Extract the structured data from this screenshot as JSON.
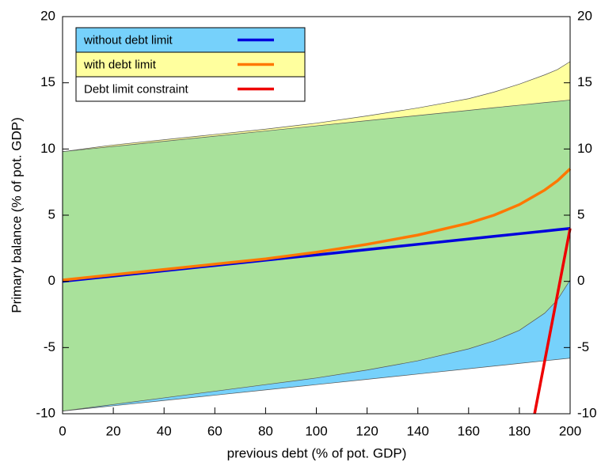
{
  "chart_data": {
    "type": "line",
    "x_label": "previous debt (% of pot. GDP)",
    "y_label": "Primary balance (% of pot. GDP)",
    "x": [
      0,
      20,
      40,
      60,
      80,
      100,
      120,
      140,
      160,
      170,
      180,
      190,
      195,
      200
    ],
    "xlim": [
      0,
      200
    ],
    "xticks": [
      0,
      20,
      40,
      60,
      80,
      100,
      120,
      140,
      160,
      180,
      200
    ],
    "ylim": [
      -10,
      20
    ],
    "yticks": [
      -10,
      -5,
      0,
      5,
      10,
      15,
      20
    ],
    "y2ticks": [
      -10,
      -5,
      0,
      5,
      10,
      15,
      20
    ],
    "overlap_color": "#a9e19b",
    "series": [
      {
        "name": "without debt limit",
        "color": "#0000dd",
        "fill_color": "#76d1fb",
        "values": [
          0,
          0.4,
          0.8,
          1.2,
          1.6,
          2.0,
          2.4,
          2.8,
          3.2,
          3.4,
          3.6,
          3.8,
          3.9,
          4.0
        ],
        "lower": [
          -9.8,
          -9.4,
          -9.0,
          -8.6,
          -8.2,
          -7.8,
          -7.4,
          -7.0,
          -6.6,
          -6.4,
          -6.2,
          -6.0,
          -5.9,
          -5.8
        ],
        "upper": [
          9.8,
          10.19,
          10.58,
          10.97,
          11.36,
          11.75,
          12.14,
          12.53,
          12.92,
          13.12,
          13.31,
          13.51,
          13.6,
          13.7
        ]
      },
      {
        "name": "with debt limit",
        "color": "#ff7700",
        "fill_color": "#ffff9e",
        "values": [
          0.1,
          0.5,
          0.9,
          1.3,
          1.7,
          2.2,
          2.8,
          3.5,
          4.4,
          5.0,
          5.8,
          6.9,
          7.6,
          8.5
        ],
        "lower": [
          -9.8,
          -9.3,
          -8.8,
          -8.3,
          -7.8,
          -7.3,
          -6.7,
          -6.0,
          -5.1,
          -4.5,
          -3.7,
          -2.4,
          -1.4,
          0.1
        ],
        "upper": [
          9.8,
          10.3,
          10.7,
          11.1,
          11.5,
          11.95,
          12.5,
          13.1,
          13.8,
          14.3,
          14.9,
          15.6,
          16.0,
          16.6
        ]
      },
      {
        "name": "Debt limit constraint",
        "color": "#ee0000",
        "x": [
          186,
          200
        ],
        "values": [
          -10,
          4
        ]
      }
    ]
  }
}
